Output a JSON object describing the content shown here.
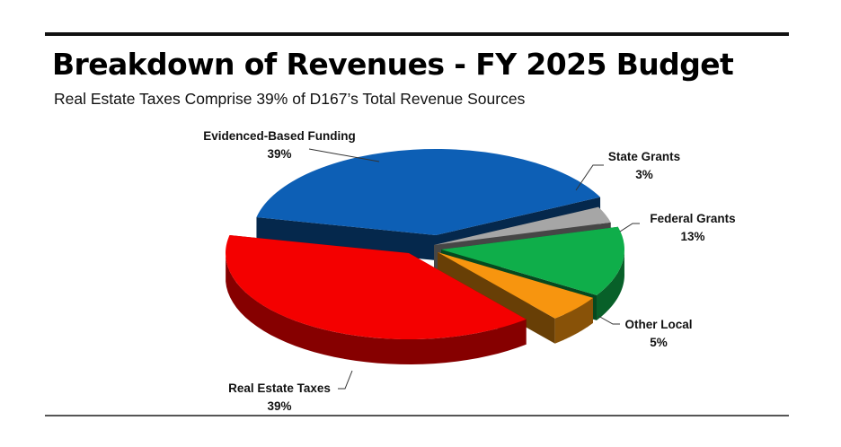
{
  "header": {
    "title": "Breakdown of Revenues - FY 2025 Budget",
    "subtitle": "Real Estate Taxes Comprise 39% of D167’s Total Revenue Sources"
  },
  "chart_data": {
    "type": "pie",
    "title": "Breakdown of Revenues - FY 2025 Budget",
    "subtitle": "Real Estate Taxes Comprise 39% of D167’s Total Revenue Sources",
    "exploded": true,
    "three_d": true,
    "slices": [
      {
        "label": "Evidenced-Based Funding",
        "value": 39,
        "value_label": "39%",
        "color": "#0d5fb5"
      },
      {
        "label": "State Grants",
        "value": 3,
        "value_label": "3%",
        "color": "#a6a6a6"
      },
      {
        "label": "Federal Grants",
        "value": 13,
        "value_label": "13%",
        "color": "#0fae4a"
      },
      {
        "label": "Other Local",
        "value": 5,
        "value_label": "5%",
        "color": "#f7950f"
      },
      {
        "label": "Real Estate Taxes",
        "value": 39,
        "value_label": "39%",
        "color": "#f40000"
      }
    ]
  }
}
